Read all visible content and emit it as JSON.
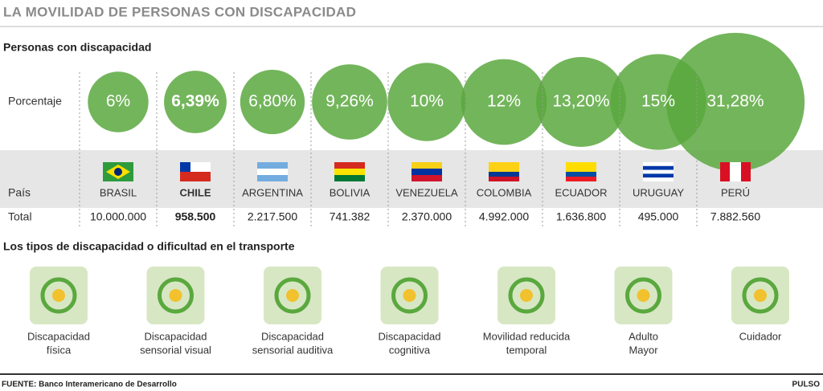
{
  "title": "LA MOVILIDAD DE PERSONAS CON DISCAPACIDAD",
  "chart_data": {
    "type": "bubble",
    "title": "Personas con discapacidad",
    "row_labels": [
      "Porcentaje",
      "País",
      "Total"
    ],
    "categories": [
      "BRASIL",
      "CHILE",
      "ARGENTINA",
      "BOLIVIA",
      "VENEZUELA",
      "COLOMBIA",
      "ECUADOR",
      "URUGUAY",
      "PERÚ"
    ],
    "values": [
      6,
      6.39,
      6.8,
      9.26,
      10,
      12,
      13.2,
      15,
      31.28
    ],
    "value_labels": [
      "6%",
      "6,39%",
      "6,80%",
      "9,26%",
      "10%",
      "12%",
      "13,20%",
      "15%",
      "31,28%"
    ],
    "totals": [
      "10.000.000",
      "958.500",
      "2.217.500",
      "741.382",
      "2.370.000",
      "4.992.000",
      "1.636.800",
      "495.000",
      "7.882.560"
    ],
    "color": "#5aa83e"
  },
  "types": {
    "title": "Los tipos de discapacidad o dificultad en el transporte",
    "items": [
      [
        "Discapacidad",
        "física"
      ],
      [
        "Discapacidad",
        "sensorial visual"
      ],
      [
        "Discapacidad",
        "sensorial auditiva"
      ],
      [
        "Discapacidad",
        "cognitiva"
      ],
      [
        "Movilidad reducida",
        "temporal"
      ],
      [
        "Adulto",
        "Mayor"
      ],
      [
        "Cuidador"
      ]
    ]
  },
  "source": "FUENTE: Banco Interamericano de Desarrollo",
  "brand": "PULSO"
}
